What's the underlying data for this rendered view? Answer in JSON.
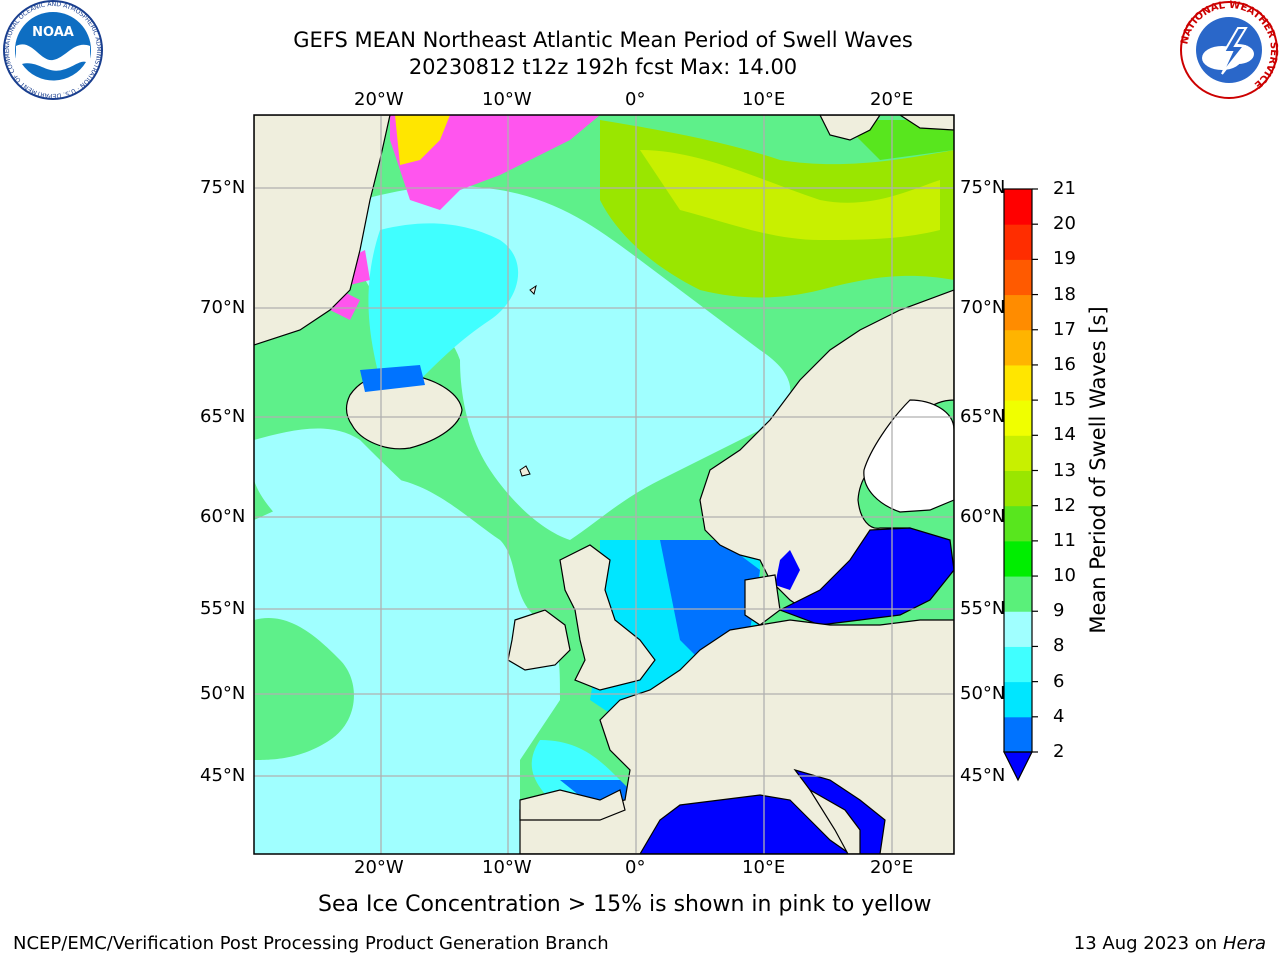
{
  "header": {
    "title_line1": "GEFS MEAN Northeast Atlantic Mean Period of Swell Waves",
    "title_line2": "20230812 t12z 192h fcst   Max: 14.00"
  },
  "logos": {
    "left": "NOAA",
    "left_ring": "NATIONAL OCEANIC AND ATMOSPHERIC ADMINISTRATION · U.S. DEPARTMENT OF COMMERCE",
    "right_ring": "NATIONAL WEATHER SERVICE"
  },
  "map": {
    "lon_labels": [
      "20°W",
      "10°W",
      "0°",
      "10°E",
      "20°E"
    ],
    "lat_labels": [
      "75°N",
      "70°N",
      "65°N",
      "60°N",
      "55°N",
      "50°N",
      "45°N"
    ],
    "ocean_color_default": "#5ef08a",
    "land_color": "#efeedd",
    "ice_color": "#ff55ee"
  },
  "colorbar": {
    "title": "Mean Period of Swell Waves [s]",
    "ticks": [
      "2",
      "4",
      "6",
      "8",
      "9",
      "10",
      "11",
      "12",
      "13",
      "14",
      "15",
      "16",
      "17",
      "18",
      "19",
      "20",
      "21"
    ],
    "colors": [
      "#0000ff",
      "#0073ff",
      "#00e6ff",
      "#40ffff",
      "#a0ffff",
      "#5af07a",
      "#00ee00",
      "#58e61e",
      "#9ae600",
      "#c8f000",
      "#f0ff00",
      "#ffe600",
      "#ffb400",
      "#ff8c00",
      "#ff5a00",
      "#ff2d00",
      "#ff0000"
    ]
  },
  "note": "Sea Ice Concentration > 15% is shown in pink to yellow",
  "footer": {
    "left": "NCEP/EMC/Verification Post Processing Product Generation Branch",
    "right_date": "13 Aug 2023 on",
    "right_host": "Hera"
  }
}
